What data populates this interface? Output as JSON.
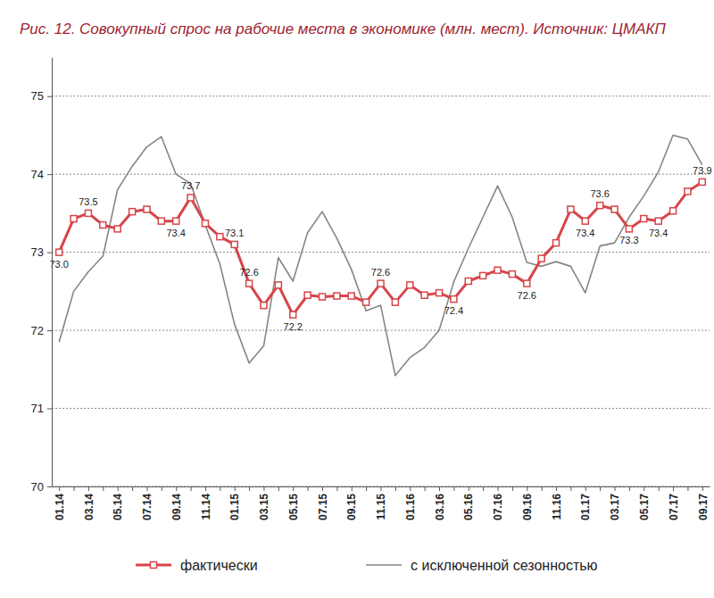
{
  "chart_data": {
    "type": "line",
    "title": "Рис. 12. Совокупный спрос на рабочие места в экономике (млн. мест). Источник: ЦМАКП",
    "categories": [
      "01.14",
      null,
      "03.14",
      null,
      "05.14",
      null,
      "07.14",
      null,
      "09.14",
      null,
      "11.14",
      null,
      "01.15",
      null,
      "03.15",
      null,
      "05.15",
      null,
      "07.15",
      null,
      "09.15",
      null,
      "11.15",
      null,
      "01.16",
      null,
      "03.16",
      null,
      "05.16",
      null,
      "07.16",
      null,
      "09.16",
      null,
      "11.16",
      null,
      "01.17",
      null,
      "03.17",
      null,
      "05.17",
      null,
      "07.17",
      null,
      "09.17"
    ],
    "series": [
      {
        "name": "фактически",
        "color": "#d6454a",
        "marker": "square",
        "line_style": "solid",
        "values": [
          73.0,
          73.43,
          73.5,
          73.35,
          73.3,
          73.52,
          73.55,
          73.4,
          73.4,
          73.7,
          73.37,
          73.2,
          73.1,
          72.6,
          72.32,
          72.58,
          72.2,
          72.45,
          72.43,
          72.44,
          72.44,
          72.36,
          72.6,
          72.36,
          72.58,
          72.45,
          72.48,
          72.4,
          72.63,
          72.7,
          72.77,
          72.72,
          72.6,
          72.92,
          73.12,
          73.55,
          73.4,
          73.6,
          73.55,
          73.3,
          73.43,
          73.4,
          73.53,
          73.78,
          73.9
        ],
        "value_labels": [
          "73.0",
          null,
          "73.5",
          null,
          null,
          null,
          null,
          null,
          "73.4",
          "73.7",
          null,
          null,
          "73.1",
          "72.6",
          null,
          null,
          "72.2",
          null,
          null,
          null,
          null,
          null,
          "72.6",
          null,
          null,
          null,
          null,
          "72.4",
          null,
          null,
          null,
          null,
          "72.6",
          null,
          null,
          null,
          "73.4",
          "73.6",
          null,
          "73.3",
          null,
          "73.4",
          null,
          null,
          "73.9"
        ]
      },
      {
        "name": "с исключенной сезонностью",
        "color": "#858585",
        "marker": "none",
        "line_style": "solid",
        "values": [
          71.85,
          72.5,
          72.75,
          72.95,
          73.8,
          74.1,
          74.35,
          74.48,
          74.0,
          73.88,
          73.35,
          72.85,
          72.08,
          71.58,
          71.8,
          72.93,
          72.63,
          73.25,
          73.52,
          73.18,
          72.78,
          72.25,
          72.32,
          71.42,
          71.65,
          71.78,
          72.0,
          72.62,
          73.05,
          73.45,
          73.85,
          73.45,
          72.87,
          72.82,
          72.88,
          72.82,
          72.48,
          73.08,
          73.12,
          73.45,
          73.72,
          74.03,
          74.5,
          74.45,
          74.12
        ]
      }
    ],
    "ylim": [
      70,
      75.5
    ],
    "yticks": [
      70,
      71,
      72,
      73,
      74,
      75
    ],
    "grid": true,
    "legend": "bottom",
    "data_labels": true
  }
}
